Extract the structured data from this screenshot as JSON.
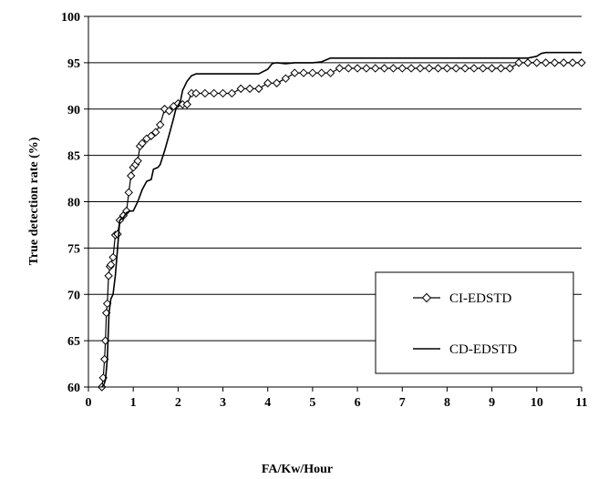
{
  "chart_data": {
    "type": "line",
    "title": "",
    "xlabel": "FA/Kw/Hour",
    "ylabel": "True detection rate (%)",
    "xlim": [
      0,
      11
    ],
    "ylim": [
      60,
      100
    ],
    "x_ticks": [
      0,
      1,
      2,
      3,
      4,
      5,
      6,
      7,
      8,
      9,
      10,
      11
    ],
    "y_ticks": [
      60,
      65,
      70,
      75,
      80,
      85,
      90,
      95,
      100
    ],
    "grid": "horizontal",
    "legend_position": "bottom-right",
    "series": [
      {
        "name": "CI-EDSTD",
        "marker": "diamond",
        "x": [
          0.3,
          0.33,
          0.36,
          0.38,
          0.4,
          0.42,
          0.45,
          0.48,
          0.5,
          0.55,
          0.6,
          0.65,
          0.7,
          0.78,
          0.85,
          0.9,
          0.95,
          1.0,
          1.05,
          1.1,
          1.15,
          1.2,
          1.3,
          1.4,
          1.5,
          1.6,
          1.7,
          1.8,
          1.9,
          2.0,
          2.1,
          2.2,
          2.3,
          2.4,
          2.6,
          2.8,
          3.0,
          3.2,
          3.4,
          3.6,
          3.8,
          4.0,
          4.2,
          4.4,
          4.6,
          4.8,
          5.0,
          5.2,
          5.4,
          5.6,
          5.8,
          6.0,
          6.2,
          6.4,
          6.6,
          6.8,
          7.0,
          7.2,
          7.4,
          7.6,
          7.8,
          8.0,
          8.2,
          8.4,
          8.6,
          8.8,
          9.0,
          9.2,
          9.4,
          9.6,
          9.8,
          10.0,
          10.2,
          10.4,
          10.6,
          10.8,
          11.0
        ],
        "y": [
          60.0,
          61.0,
          63.0,
          65.0,
          68.0,
          69.0,
          72.0,
          73.0,
          73.2,
          74.0,
          76.4,
          76.5,
          78.0,
          78.5,
          79.0,
          81.0,
          82.8,
          83.7,
          84.0,
          84.4,
          86.0,
          86.3,
          86.8,
          87.1,
          87.5,
          88.3,
          90.0,
          89.8,
          90.3,
          90.6,
          90.5,
          90.5,
          91.7,
          91.7,
          91.7,
          91.7,
          91.7,
          91.7,
          92.2,
          92.2,
          92.2,
          92.8,
          92.8,
          93.3,
          93.9,
          93.9,
          93.9,
          93.9,
          93.9,
          94.4,
          94.4,
          94.4,
          94.4,
          94.4,
          94.4,
          94.4,
          94.4,
          94.4,
          94.4,
          94.4,
          94.4,
          94.4,
          94.4,
          94.4,
          94.4,
          94.4,
          94.4,
          94.4,
          94.4,
          95.0,
          95.0,
          95.0,
          95.0,
          95.0,
          95.0,
          95.0,
          95.0
        ]
      },
      {
        "name": "CD-EDSTD",
        "marker": "none",
        "x": [
          0.3,
          0.35,
          0.38,
          0.42,
          0.46,
          0.5,
          0.55,
          0.6,
          0.65,
          0.7,
          0.78,
          0.85,
          0.92,
          1.0,
          1.05,
          1.1,
          1.2,
          1.3,
          1.4,
          1.45,
          1.55,
          1.6,
          1.7,
          1.8,
          1.9,
          1.95,
          2.05,
          2.1,
          2.2,
          2.3,
          2.4,
          2.6,
          2.8,
          3.0,
          3.5,
          3.8,
          4.0,
          4.1,
          4.2,
          4.4,
          4.6,
          5.0,
          5.2,
          5.4,
          6.0,
          7.0,
          8.0,
          9.0,
          9.5,
          9.8,
          10.0,
          10.1,
          10.2,
          10.6,
          11.0
        ],
        "y": [
          60.0,
          60.3,
          60.8,
          63.0,
          68.0,
          69.5,
          70.0,
          72.0,
          75.0,
          78.0,
          78.3,
          78.8,
          79.0,
          79.0,
          79.5,
          80.0,
          81.3,
          82.2,
          82.4,
          83.5,
          83.7,
          84.0,
          85.5,
          87.2,
          89.0,
          90.0,
          90.8,
          92.0,
          93.0,
          93.6,
          93.8,
          93.8,
          93.8,
          93.8,
          93.8,
          93.8,
          94.3,
          94.9,
          95.0,
          94.9,
          95.0,
          95.0,
          95.1,
          95.5,
          95.5,
          95.5,
          95.5,
          95.5,
          95.5,
          95.5,
          95.7,
          96.0,
          96.1,
          96.1,
          96.1
        ]
      }
    ]
  }
}
